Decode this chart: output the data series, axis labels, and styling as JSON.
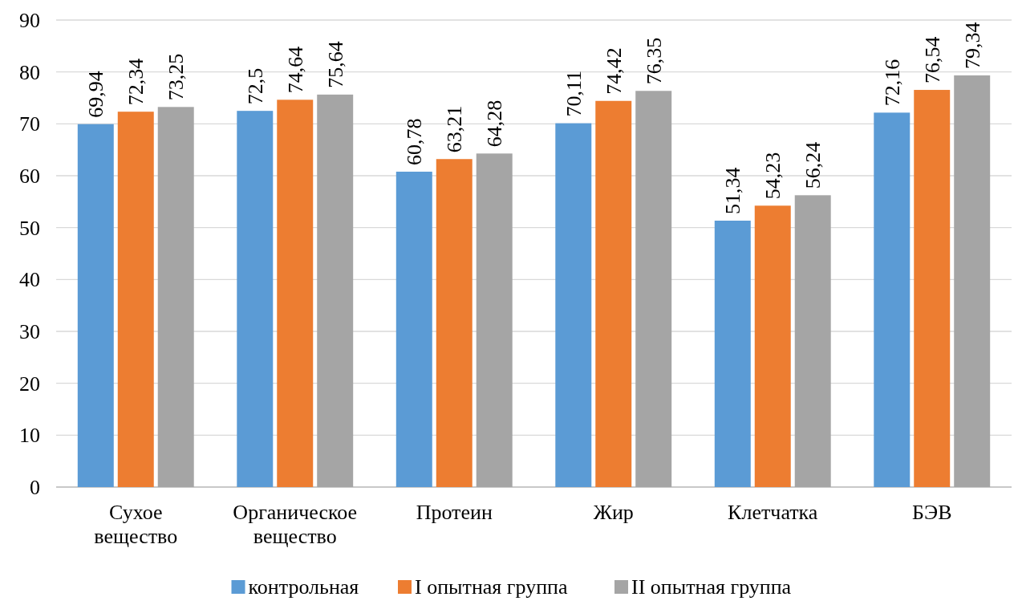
{
  "chart_data": {
    "type": "bar",
    "categories": [
      "Сухое вещество",
      "Органическое вещество",
      "Протеин",
      "Жир",
      "Клетчатка",
      "БЭВ"
    ],
    "series": [
      {
        "name": "контрольная",
        "color": "#5b9bd5",
        "values": [
          69.94,
          72.5,
          60.78,
          70.11,
          51.34,
          72.16
        ],
        "value_labels": [
          "69,94",
          "72,5",
          "60,78",
          "70,11",
          "51,34",
          "72,16"
        ]
      },
      {
        "name": "I опытная группа",
        "color": "#ed7d31",
        "values": [
          72.34,
          74.64,
          63.21,
          74.42,
          54.23,
          76.54
        ],
        "value_labels": [
          "72,34",
          "74,64",
          "63,21",
          "74,42",
          "54,23",
          "76,54"
        ]
      },
      {
        "name": "II опытная группа",
        "color": "#a5a5a5",
        "values": [
          73.25,
          75.64,
          64.28,
          76.35,
          56.24,
          79.34
        ],
        "value_labels": [
          "73,25",
          "75,64",
          "64,28",
          "76,35",
          "56,24",
          "79,34"
        ]
      }
    ],
    "ylim": [
      0,
      90
    ],
    "yticks": [
      0,
      10,
      20,
      30,
      40,
      50,
      60,
      70,
      80,
      90
    ],
    "grid": "y",
    "legend": "bottom"
  }
}
